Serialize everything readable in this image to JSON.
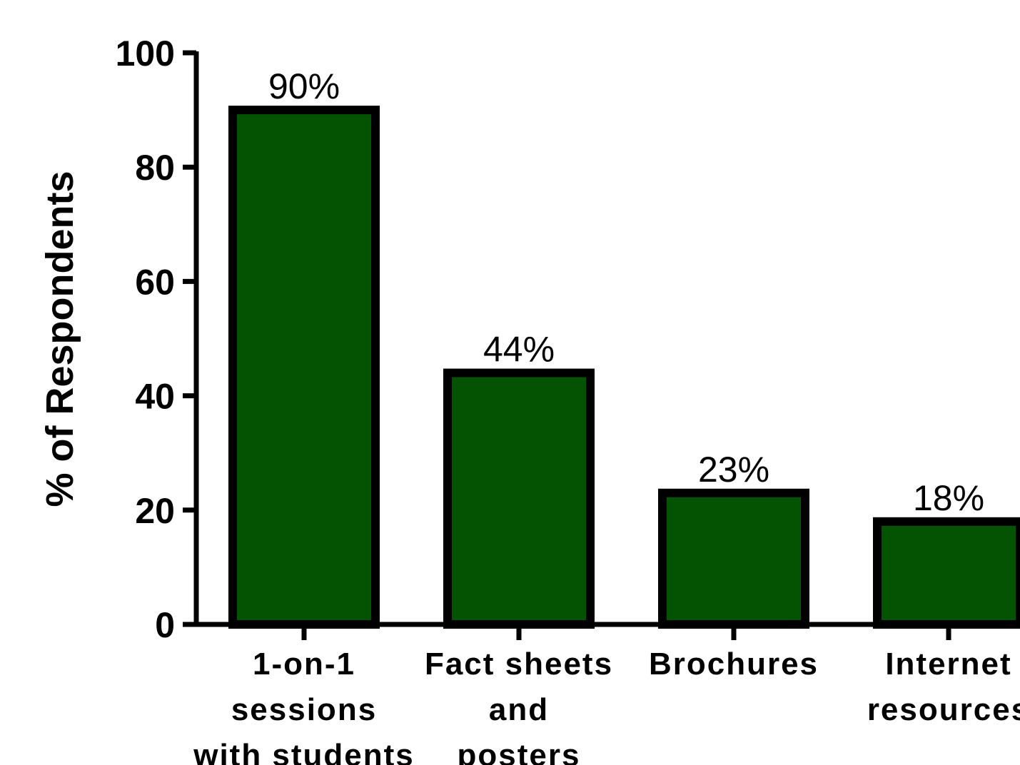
{
  "chart_data": {
    "type": "bar",
    "categories": [
      [
        "1-on-1",
        "sessions",
        "with students"
      ],
      [
        "Fact sheets",
        "and",
        "posters"
      ],
      [
        "Brochures"
      ],
      [
        "Internet",
        "resources"
      ]
    ],
    "values": [
      90,
      44,
      23,
      18
    ],
    "data_labels": [
      "90%",
      "44%",
      "23%",
      "18%"
    ],
    "ylabel": "% of Respondents",
    "xlabel": "",
    "ylim": [
      0,
      100
    ],
    "yticks": [
      0,
      20,
      40,
      60,
      80,
      100
    ],
    "bar_color": "#035303",
    "bar_edge_color": "#000000",
    "grid": false
  }
}
